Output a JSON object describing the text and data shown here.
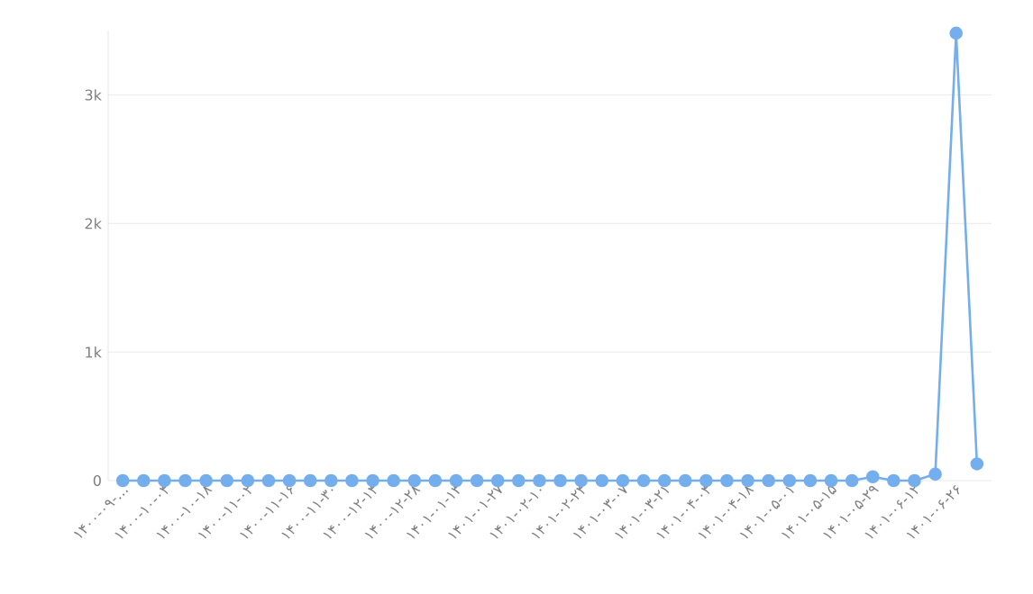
{
  "chart_data": {
    "type": "line",
    "categories": [
      "۱۴۰۰-۰۹-…",
      null,
      "۱۴۰۰-۱۰-۰۴",
      null,
      "۱۴۰۰-۱۰-۱۸",
      null,
      "۱۴۰۰-۱۱-۰۲",
      null,
      "۱۴۰۰-۱۱-۱۶",
      null,
      "۱۴۰۰-۱۱-۳۰",
      null,
      "۱۴۰۰-۱۲-۱۴",
      null,
      "۱۴۰۰-۱۲-۲۸",
      null,
      "۱۴۰۱-۰۱-۱۳",
      null,
      "۱۴۰۱-۰۱-۲۷",
      null,
      "۱۴۰۱-۰۲-۱۰",
      null,
      "۱۴۰۱-۰۲-۲۴",
      null,
      "۱۴۰۱-۰۳-۰۷",
      null,
      "۱۴۰۱-۰۳-۲۱",
      null,
      "۱۴۰۱-۰۴-۰۴",
      null,
      "۱۴۰۱-۰۴-۱۸",
      null,
      "۱۴۰۱-۰۵-۰۱",
      null,
      "۱۴۰۱-۰۵-۱۵",
      null,
      "۱۴۰۱-۰۵-۲۹",
      null,
      "۱۴۰۱-۰۶-۱۲",
      null,
      "۱۴۰۱-۰۶-۲۶",
      null
    ],
    "values": [
      0,
      0,
      0,
      0,
      0,
      0,
      0,
      0,
      0,
      0,
      0,
      0,
      0,
      0,
      0,
      0,
      0,
      0,
      0,
      0,
      0,
      0,
      0,
      0,
      0,
      0,
      0,
      0,
      0,
      0,
      0,
      0,
      0,
      0,
      0,
      0,
      30,
      0,
      0,
      50,
      3480,
      130
    ],
    "color": "#74aeec",
    "ylim": [
      0,
      3500
    ],
    "yticks": [
      0,
      {
        "value": 1000,
        "label": "1k"
      },
      {
        "value": 2000,
        "label": "2k"
      },
      {
        "value": 3000,
        "label": "3k"
      }
    ],
    "grid": "y",
    "marker": "circle",
    "line_style": "solid"
  }
}
